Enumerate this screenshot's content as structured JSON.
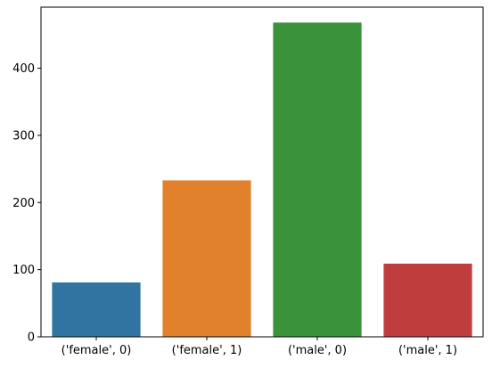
{
  "chart_data": {
    "type": "bar",
    "title": "",
    "xlabel": "",
    "ylabel": "",
    "categories": [
      "('female', 0)",
      "('female', 1)",
      "('male', 0)",
      "('male', 1)"
    ],
    "values": [
      81,
      233,
      468,
      109
    ],
    "colors": [
      "#3274a1",
      "#e1812c",
      "#3a923a",
      "#c03d3e"
    ],
    "ylim": [
      0,
      491
    ],
    "yticks": [
      0,
      100,
      200,
      300,
      400
    ],
    "grid": false
  }
}
